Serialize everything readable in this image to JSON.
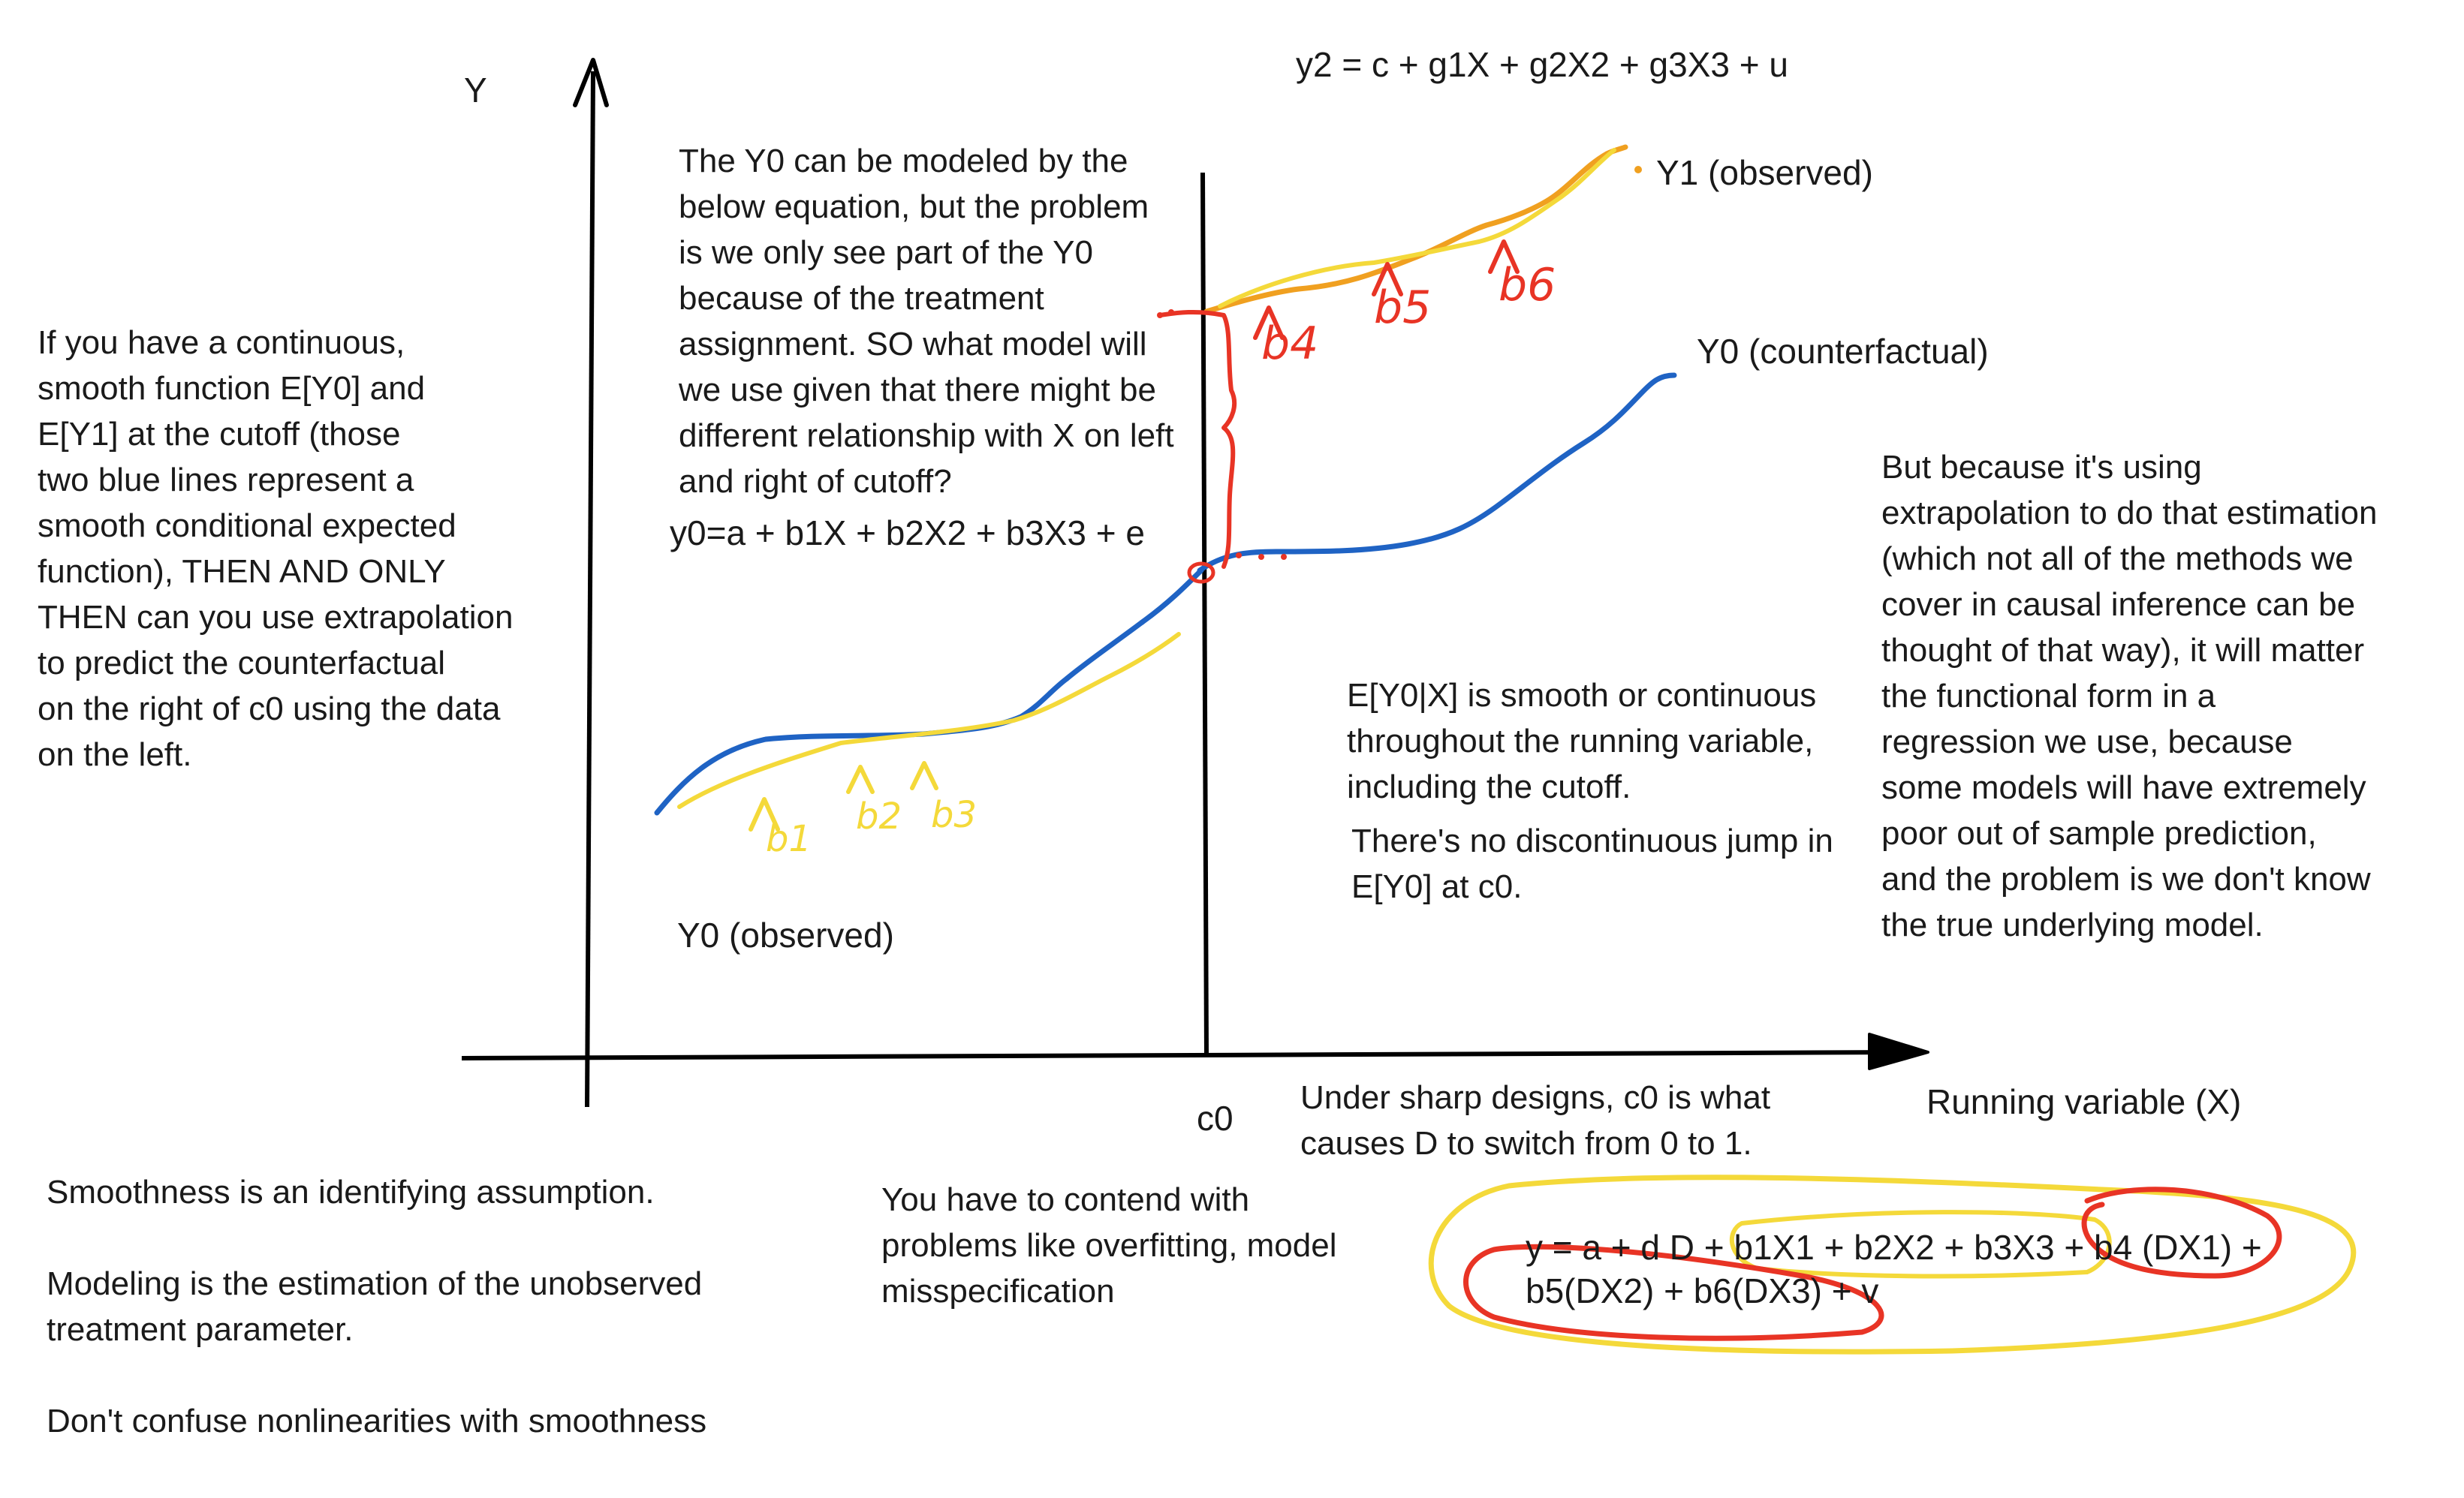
{
  "colors": {
    "axis": "#000000",
    "y0": "#1f63c4",
    "y0_fit": "#f4d93a",
    "y1": "#f0a020",
    "annotation_red": "#e83425",
    "annotation_yellow": "#f4d93a"
  },
  "axes": {
    "y_label": "Y",
    "x_label": "Running variable (X)",
    "cutoff_label": "c0"
  },
  "curves": {
    "y1_label": "Y1 (observed)",
    "y0_counterfactual_label": "Y0 (counterfactual)",
    "y0_observed_label": "Y0 (observed)"
  },
  "equations": {
    "y2": "y2 = c + g1X + g2X2 + g3X3 + u",
    "y0": "y0=a + b1X + b2X2 + b3X3 + e",
    "pooled_line1": "y = a + d D + b1X1 + b2X2 + b3X3 + b4 (DX1) +",
    "pooled_line2": "b5(DX2) + b6(DX3) + v"
  },
  "handwriting": {
    "b1": "b1",
    "b2": "b2",
    "b3": "b3",
    "b4": "b4",
    "b5": "b5",
    "b6": "b6"
  },
  "notes": {
    "left": "If you have a continuous,\nsmooth function E[Y0] and\nE[Y1] at the cutoff (those\ntwo blue lines represent a\nsmooth conditional expected\nfunction), THEN AND ONLY\nTHEN can you use extrapolation\nto predict the counterfactual\non the right of c0 using the data\non the left.",
    "top_center": "The Y0 can be modeled by the\nbelow equation, but the problem\nis we only see part of the Y0\nbecause of the treatment\nassignment. SO what model will\nwe use given that there might be\ndifferent relationship with X on left\nand right of cutoff?",
    "smooth": "E[Y0|X] is smooth or continuous\nthroughout the running variable,\nincluding the cutoff.",
    "no_jump": "There's no discontinuous jump in\nE[Y0] at c0.",
    "right": "But because it's using\nextrapolation to do that estimation\n(which not all of the methods we\ncover in causal inference can be\nthought of that way), it will matter\nthe functional form in a\nregression we use, because\nsome models will have extremely\npoor out of sample prediction,\nand the problem is we don't know\nthe true underlying model.",
    "sharp": "Under sharp designs, c0 is what\ncauses D to switch from 0 to 1.",
    "overfit": "You have to contend with\nproblems like overfitting, model\nmisspecification",
    "bottom_left": "Smoothness is an identifying assumption.\n\nModeling is the estimation of the unobserved\ntreatment parameter.\n\nDon't confuse nonlinearities with smoothness"
  }
}
